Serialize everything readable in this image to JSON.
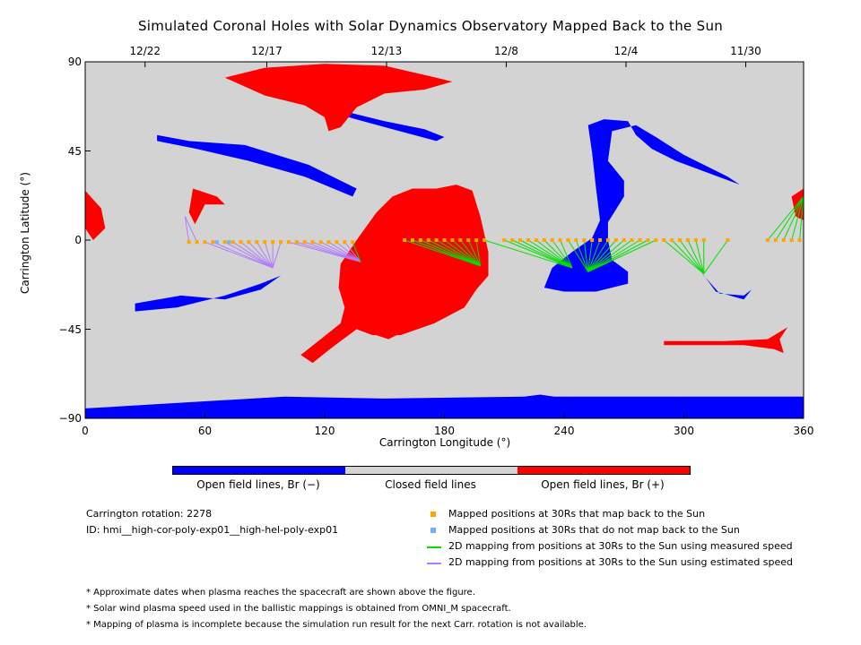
{
  "title": "Simulated Coronal Holes with Solar Dynamics Observatory Mapped Back to the Sun",
  "top_axis": {
    "ticks": [
      {
        "label": "12/22",
        "lon": 30
      },
      {
        "label": "12/17",
        "lon": 91
      },
      {
        "label": "12/13",
        "lon": 151
      },
      {
        "label": "12/8",
        "lon": 211
      },
      {
        "label": "12/4",
        "lon": 271
      },
      {
        "label": "11/30",
        "lon": 331
      }
    ]
  },
  "colorbar": {
    "labels": [
      "Open field lines, Br (−)",
      "Closed field lines",
      "Open field lines, Br (+)"
    ],
    "colors": [
      "#0000ff",
      "#d3d3d3",
      "#ff0000"
    ]
  },
  "info": {
    "rotation": "Carrington rotation: 2278",
    "id": "ID: hmi__high-cor-poly-exp01__high-hel-poly-exp01"
  },
  "legend": [
    {
      "label": "Mapped positions at 30Rs that map back to the Sun",
      "color": "#ffa500",
      "kind": "square"
    },
    {
      "label": "Mapped positions at 30Rs that do not map back to the Sun",
      "color": "#6cb4ff",
      "kind": "square"
    },
    {
      "label": "2D mapping from positions at 30Rs to the Sun using measured speed",
      "color": "#00e000",
      "kind": "line"
    },
    {
      "label": "2D mapping from positions at 30Rs to the Sun using estimated speed",
      "color": "#b07cff",
      "kind": "line"
    }
  ],
  "notes": [
    "* Approximate dates when plasma reaches the spacecraft are shown above the figure.",
    "* Solar wind plasma speed used in the ballistic mappings is obtained from OMNI_M spacecraft.",
    "* Mapping of plasma is incomplete because the simulation run result for the next Carr. rotation is not available."
  ],
  "chart_data": {
    "type": "scatter",
    "title": "Simulated Coronal Holes with Solar Dynamics Observatory Mapped Back to the Sun",
    "xlabel": "Carrington Longitude (°)",
    "ylabel": "Carrington Latitude (°)",
    "xlim": [
      0,
      360
    ],
    "ylim": [
      -90,
      90
    ],
    "xticks": [
      0,
      60,
      120,
      180,
      240,
      300,
      360
    ],
    "yticks": [
      90,
      45,
      0,
      -45,
      -90
    ],
    "grid": false,
    "background": "#d3d3d3",
    "regions": [
      {
        "polarity": "negative",
        "color": "#0000ff",
        "points": [
          [
            0,
            -85
          ],
          [
            100,
            -79
          ],
          [
            150,
            -80
          ],
          [
            220,
            -79
          ],
          [
            228,
            -78
          ],
          [
            235,
            -79
          ],
          [
            300,
            -79
          ],
          [
            360,
            -79
          ],
          [
            360,
            -90
          ],
          [
            0,
            -90
          ]
        ]
      },
      {
        "polarity": "negative",
        "color": "#0000ff",
        "points": [
          [
            252,
            58
          ],
          [
            260,
            61
          ],
          [
            272,
            60
          ],
          [
            276,
            53
          ],
          [
            284,
            46
          ],
          [
            296,
            40
          ],
          [
            328,
            28
          ],
          [
            322,
            32
          ],
          [
            300,
            43
          ],
          [
            286,
            52
          ],
          [
            276,
            58
          ],
          [
            264,
            55
          ],
          [
            262,
            40
          ],
          [
            270,
            30
          ],
          [
            270,
            22
          ],
          [
            262,
            9
          ],
          [
            262,
            0
          ],
          [
            264,
            -10
          ],
          [
            272,
            -16
          ],
          [
            272,
            -22
          ],
          [
            256,
            -26
          ],
          [
            240,
            -26
          ],
          [
            230,
            -24
          ],
          [
            234,
            -14
          ],
          [
            244,
            -6
          ],
          [
            254,
            1
          ],
          [
            258,
            10
          ],
          [
            256,
            26
          ],
          [
            254,
            44
          ]
        ]
      },
      {
        "polarity": "negative",
        "color": "#0000ff",
        "points": [
          [
            36,
            53
          ],
          [
            52,
            50
          ],
          [
            80,
            48
          ],
          [
            112,
            38
          ],
          [
            136,
            26
          ],
          [
            134,
            22
          ],
          [
            110,
            32
          ],
          [
            82,
            40
          ],
          [
            56,
            46
          ],
          [
            36,
            50
          ]
        ]
      },
      {
        "polarity": "negative",
        "color": "#0000ff",
        "points": [
          [
            25,
            -32
          ],
          [
            48,
            -28
          ],
          [
            70,
            -30
          ],
          [
            88,
            -25
          ],
          [
            98,
            -18
          ],
          [
            88,
            -22
          ],
          [
            70,
            -28
          ],
          [
            46,
            -34
          ],
          [
            25,
            -36
          ]
        ]
      },
      {
        "polarity": "negative",
        "color": "#0000ff",
        "points": [
          [
            308,
            -15
          ],
          [
            316,
            -26
          ],
          [
            330,
            -30
          ],
          [
            334,
            -25
          ],
          [
            330,
            -28
          ],
          [
            318,
            -27
          ],
          [
            310,
            -18
          ]
        ]
      },
      {
        "polarity": "negative",
        "color": "#0000ff",
        "points": [
          [
            104,
            73
          ],
          [
            116,
            70
          ],
          [
            134,
            64
          ],
          [
            150,
            60
          ],
          [
            170,
            56
          ],
          [
            180,
            52
          ],
          [
            176,
            50
          ],
          [
            154,
            56
          ],
          [
            132,
            62
          ],
          [
            112,
            68
          ],
          [
            100,
            72
          ]
        ]
      },
      {
        "polarity": "positive",
        "color": "#ff0000",
        "points": [
          [
            90,
            87
          ],
          [
            120,
            89
          ],
          [
            150,
            88
          ],
          [
            176,
            82
          ],
          [
            184,
            80
          ],
          [
            170,
            76
          ],
          [
            150,
            74
          ],
          [
            136,
            67
          ],
          [
            128,
            57
          ],
          [
            122,
            55
          ],
          [
            120,
            62
          ],
          [
            110,
            68
          ],
          [
            90,
            73
          ],
          [
            70,
            82
          ]
        ]
      },
      {
        "polarity": "positive",
        "color": "#ff0000",
        "points": [
          [
            164,
            26
          ],
          [
            176,
            26
          ],
          [
            186,
            28
          ],
          [
            194,
            25
          ],
          [
            198,
            12
          ],
          [
            202,
            -6
          ],
          [
            202,
            -18
          ],
          [
            196,
            -25
          ],
          [
            190,
            -34
          ],
          [
            175,
            -42
          ],
          [
            158,
            -48
          ],
          [
            144,
            -48
          ],
          [
            136,
            -45
          ],
          [
            124,
            -54
          ],
          [
            114,
            -62
          ],
          [
            108,
            -58
          ],
          [
            118,
            -50
          ],
          [
            128,
            -42
          ],
          [
            130,
            -34
          ],
          [
            127,
            -24
          ],
          [
            128,
            -12
          ],
          [
            136,
            0
          ],
          [
            146,
            14
          ],
          [
            154,
            22
          ]
        ]
      },
      {
        "polarity": "positive",
        "color": "#ff0000",
        "points": [
          [
            140,
            -46
          ],
          [
            152,
            -50
          ],
          [
            158,
            -47
          ],
          [
            150,
            -45
          ]
        ]
      },
      {
        "polarity": "positive",
        "color": "#ff0000",
        "points": [
          [
            54,
            26
          ],
          [
            66,
            22
          ],
          [
            70,
            18
          ],
          [
            60,
            18
          ],
          [
            55,
            8
          ],
          [
            52,
            14
          ]
        ]
      },
      {
        "polarity": "positive",
        "color": "#ff0000",
        "points": [
          [
            290,
            -53
          ],
          [
            330,
            -53
          ],
          [
            345,
            -55
          ],
          [
            350,
            -57
          ],
          [
            348,
            -50
          ],
          [
            352,
            -44
          ],
          [
            342,
            -50
          ],
          [
            320,
            -51
          ],
          [
            290,
            -51
          ]
        ]
      },
      {
        "polarity": "positive",
        "color": "#ff0000",
        "points": [
          [
            0,
            25
          ],
          [
            8,
            16
          ],
          [
            10,
            6
          ],
          [
            4,
            0
          ],
          [
            0,
            6
          ]
        ]
      },
      {
        "polarity": "positive",
        "color": "#ff0000",
        "points": [
          [
            360,
            26
          ],
          [
            354,
            22
          ],
          [
            356,
            12
          ],
          [
            360,
            10
          ]
        ]
      }
    ],
    "series": [
      {
        "name": "Mapped positions at 30Rs that map back to the Sun",
        "color": "#ffa500",
        "lon": [
          52,
          56,
          60,
          64,
          70,
          74,
          78,
          82,
          86,
          90,
          94,
          98,
          102,
          106,
          110,
          114,
          118,
          122,
          126,
          130,
          134,
          160,
          164,
          168,
          172,
          176,
          180,
          184,
          188,
          192,
          196,
          200,
          210,
          214,
          218,
          222,
          226,
          230,
          234,
          238,
          242,
          246,
          250,
          254,
          258,
          262,
          266,
          270,
          274,
          278,
          282,
          286,
          290,
          294,
          298,
          302,
          306,
          310,
          322,
          342,
          346,
          350,
          354,
          358
        ],
        "lat": [
          -1,
          -1,
          -1,
          -1,
          -1,
          -1,
          -1,
          -1,
          -1,
          -1,
          -1,
          -1,
          -1,
          -1,
          -1,
          -1,
          -1,
          -1,
          -1,
          -1,
          -1,
          0,
          0,
          0,
          0,
          0,
          0,
          0,
          0,
          0,
          0,
          0,
          0,
          0,
          0,
          0,
          0,
          0,
          0,
          0,
          0,
          0,
          0,
          0,
          0,
          0,
          0,
          0,
          0,
          0,
          0,
          0,
          0,
          0,
          0,
          0,
          0,
          0,
          0,
          0,
          0,
          0,
          0,
          0
        ]
      },
      {
        "name": "Mapped positions at 30Rs that do not map back to the Sun",
        "color": "#6cb4ff",
        "lon": [
          66,
          72
        ],
        "lat": [
          -1,
          -1
        ]
      }
    ]
  }
}
